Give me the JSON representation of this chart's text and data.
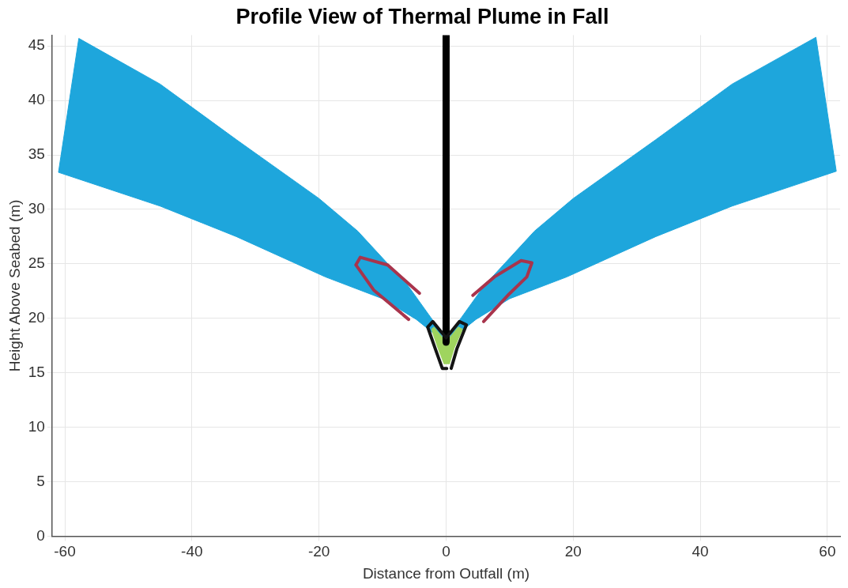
{
  "chart_data": {
    "type": "area",
    "title": "Profile View of Thermal Plume in Fall",
    "xlabel": "Distance from Outfall (m)",
    "ylabel": "Height Above Seabed (m)",
    "xlim": [
      -62,
      62
    ],
    "ylim": [
      0,
      46
    ],
    "xticks": [
      -60,
      -40,
      -20,
      0,
      20,
      40,
      60
    ],
    "yticks": [
      0,
      5,
      10,
      15,
      20,
      25,
      30,
      35,
      40,
      45
    ],
    "grid": true,
    "legend": false,
    "marker": "none",
    "line_style": "solid",
    "series": [
      {
        "color": "#1ea6dc",
        "x": [
          0,
          2.2,
          6,
          13.9,
          20,
          33,
          45,
          58.2,
          61.4,
          45,
          33,
          19,
          10,
          4.7,
          0
        ],
        "values": [
          17.7,
          19.9,
          23,
          28,
          31,
          36.4,
          41.5,
          45.8,
          33.5,
          30.3,
          27.5,
          23.8,
          21.8,
          19.9,
          17.7
        ]
      },
      {
        "color": "#1ea6dc",
        "x": [
          0,
          -2.2,
          -6,
          -13.9,
          -20,
          -33,
          -45,
          -57.8,
          -61,
          -45,
          -33,
          -19,
          -10,
          -4.7,
          0
        ],
        "values": [
          17.7,
          19.9,
          23,
          28,
          31,
          36.4,
          41.5,
          45.7,
          33.4,
          30.3,
          27.5,
          23.8,
          21.8,
          19.9,
          17.7
        ]
      },
      {
        "type": "line",
        "color": "#a8344c",
        "x": [
          4.2,
          7.6,
          11.8,
          13.5,
          12.7,
          9.7,
          5.9
        ],
        "values": [
          22.1,
          23.8,
          25.3,
          25.1,
          23.8,
          22.1,
          19.7
        ]
      },
      {
        "type": "line",
        "color": "#a8344c",
        "x": [
          -4.2,
          -9.2,
          -13.5,
          -14.2,
          -11.4,
          -5.9
        ],
        "values": [
          22.3,
          24.9,
          25.6,
          24.9,
          22.6,
          19.9
        ]
      },
      {
        "color": "#9fd45e",
        "x": [
          -0.3,
          -1.3,
          -2.3,
          -1.9,
          0,
          1.9,
          2.6,
          1.3,
          0.5
        ],
        "values": [
          15.8,
          17.3,
          19,
          19.2,
          17.8,
          19.2,
          19,
          17.3,
          15.8
        ]
      },
      {
        "type": "line",
        "color": "#000000",
        "x": [
          0,
          0
        ],
        "values": [
          17.8,
          46
        ]
      },
      {
        "type": "line",
        "color": "#141414",
        "x": [
          0.1,
          -0.6,
          -1.7,
          -2.9,
          -2.1,
          0,
          2.1,
          3.2,
          1.7,
          0.8
        ],
        "values": [
          15.4,
          15.4,
          17.2,
          19.2,
          19.7,
          18.2,
          19.7,
          19.4,
          17.2,
          15.4
        ]
      }
    ]
  }
}
